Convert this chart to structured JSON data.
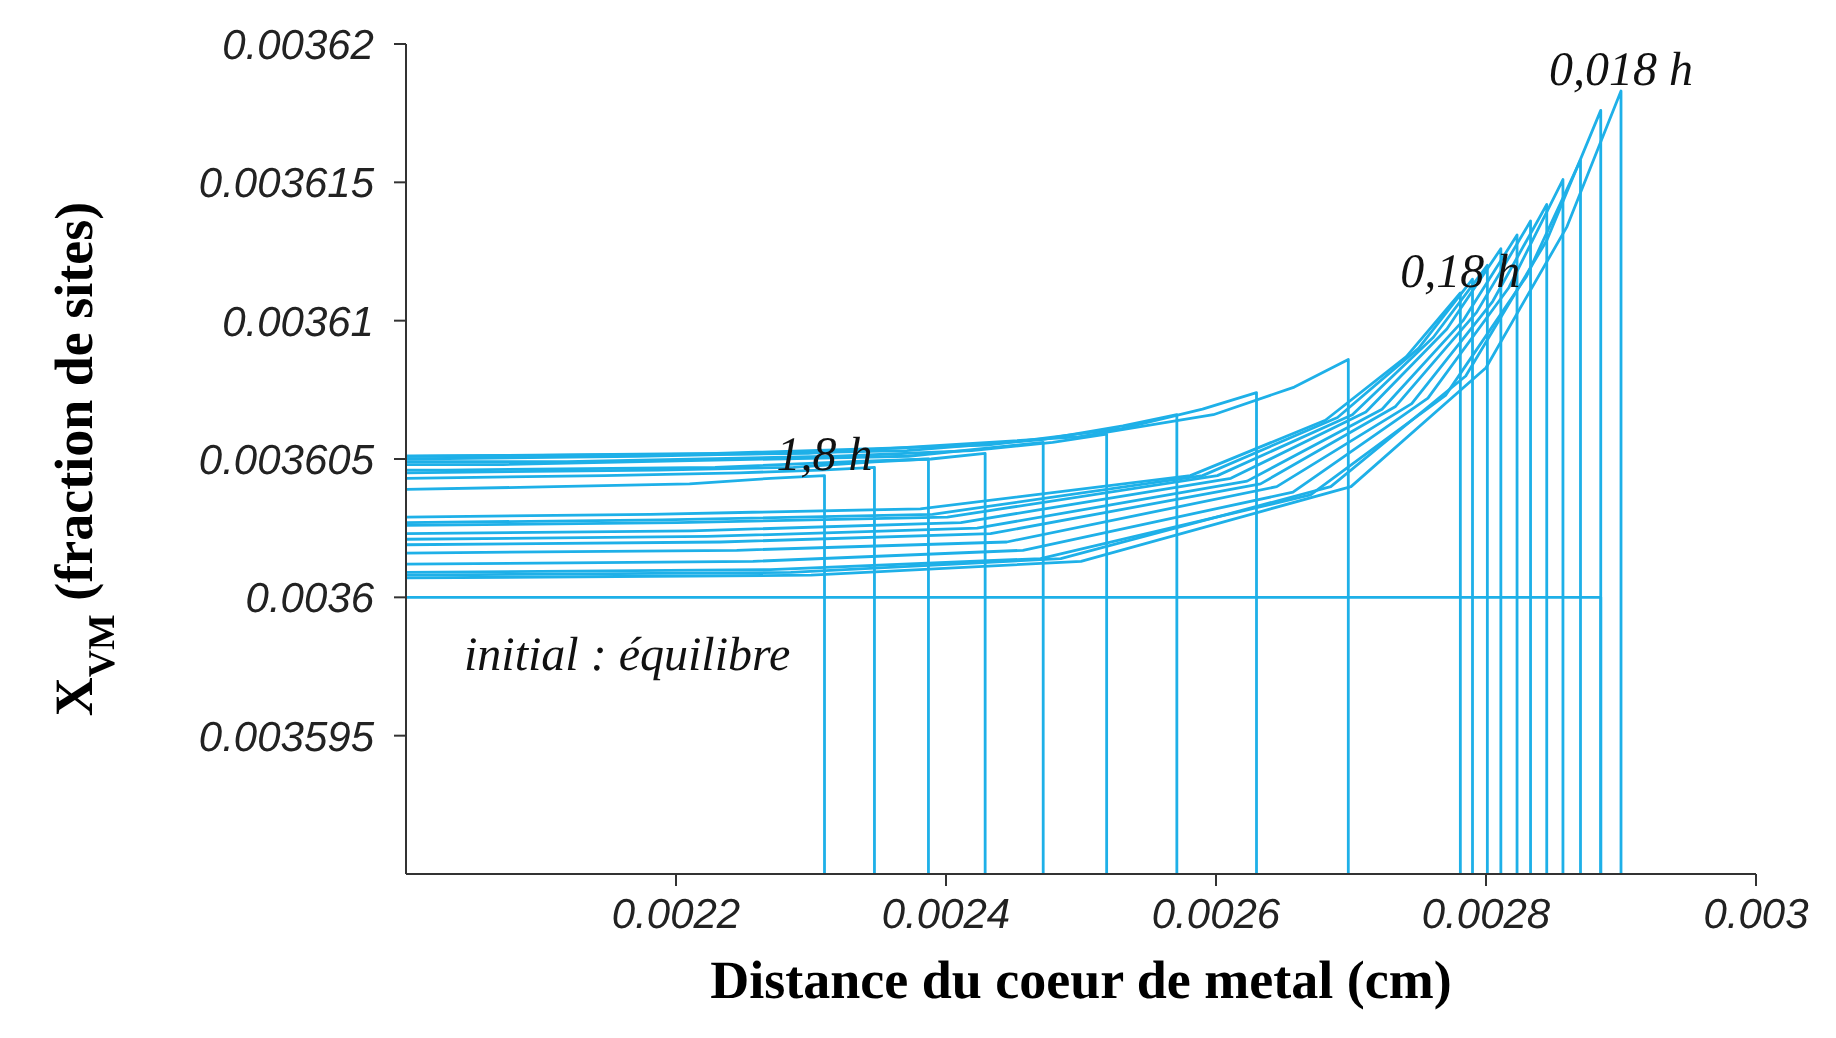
{
  "chart_data": {
    "type": "line",
    "xlabel": "Distance du coeur de metal (cm)",
    "ylabel": "X$_{VM}$ (fraction de sites)",
    "xlim": [
      0.002,
      0.003
    ],
    "xticks": [
      0.0022,
      0.0024,
      0.0026,
      0.0028,
      0.003
    ],
    "ylim": [
      0.00359,
      0.00362
    ],
    "yticks": [
      0.003595,
      0.0036,
      0.003605,
      0.00361,
      0.003615,
      0.00362
    ],
    "annotations": [
      {
        "text": "1,8 h",
        "x": 0.00231,
        "y": 0.0036044
      },
      {
        "text": "0,18 h",
        "x": 0.002781,
        "y": 0.003611
      },
      {
        "text": "0,018 h",
        "x": 0.0029,
        "y": 0.0036183
      },
      "initial : équilibre"
    ],
    "series": [
      {
        "color": "#1eb0e8",
        "x": [
          0.002,
          0.002885,
          0.002885
        ],
        "values": [
          0.0036,
          0.0036,
          0.00359
        ]
      },
      {
        "color": "#1eb0e8",
        "x": [
          0.002,
          0.00211,
          0.00221,
          0.00227,
          0.00231,
          0.00231
        ],
        "values": [
          0.0036039,
          0.003604,
          0.0036041,
          0.0036043,
          0.0036044,
          0.00359
        ]
      },
      {
        "color": "#1eb0e8",
        "x": [
          0.002,
          0.002147,
          0.002247,
          0.002307,
          0.002347,
          0.002347
        ],
        "values": [
          0.0036043,
          0.0036044,
          0.0036045,
          0.0036046,
          0.0036047,
          0.00359
        ]
      },
      {
        "color": "#1eb0e8",
        "x": [
          0.002,
          0.002187,
          0.002287,
          0.002347,
          0.002387,
          0.002387
        ],
        "values": [
          0.0036045,
          0.0036046,
          0.0036047,
          0.0036049,
          0.003605,
          0.00359
        ]
      },
      {
        "color": "#1eb0e8",
        "x": [
          0.002,
          0.002029,
          0.002229,
          0.002329,
          0.002389,
          0.002429,
          0.002429
        ],
        "values": [
          0.0036046,
          0.0036046,
          0.0036047,
          0.0036049,
          0.003605,
          0.0036052,
          0.00359
        ]
      },
      {
        "color": "#1eb0e8",
        "x": [
          0.002,
          0.002072,
          0.002272,
          0.002372,
          0.002432,
          0.002472,
          0.002472
        ],
        "values": [
          0.0036048,
          0.0036048,
          0.003605,
          0.0036051,
          0.0036054,
          0.0036056,
          0.00359
        ]
      },
      {
        "color": "#1eb0e8",
        "x": [
          0.002,
          0.002119,
          0.002319,
          0.002419,
          0.002479,
          0.002519,
          0.002519
        ],
        "values": [
          0.0036049,
          0.0036049,
          0.0036051,
          0.0036053,
          0.0036056,
          0.0036059,
          0.00359
        ]
      },
      {
        "color": "#1eb0e8",
        "x": [
          0.002,
          0.002171,
          0.002371,
          0.002471,
          0.002531,
          0.002571,
          0.002571
        ],
        "values": [
          0.003605,
          0.0036051,
          0.0036053,
          0.0036057,
          0.0036062,
          0.0036066,
          0.00359
        ]
      },
      {
        "color": "#1eb0e8",
        "x": [
          0.002,
          0.00223,
          0.00243,
          0.00253,
          0.00259,
          0.00263,
          0.00263
        ],
        "values": [
          0.0036051,
          0.0036052,
          0.0036055,
          0.0036061,
          0.0036068,
          0.0036074,
          0.00359
        ]
      },
      {
        "color": "#1eb0e8",
        "x": [
          0.002,
          0.002298,
          0.002498,
          0.002598,
          0.002658,
          0.002698,
          0.002698
        ],
        "values": [
          0.0036051,
          0.0036052,
          0.0036058,
          0.0036066,
          0.0036076,
          0.0036086,
          0.00359
        ]
      },
      {
        "color": "#1eb0e8",
        "x": [
          0.002,
          0.002181,
          0.002381,
          0.002581,
          0.002681,
          0.002741,
          0.002781,
          0.002781
        ],
        "values": [
          0.0036029,
          0.003603,
          0.0036032,
          0.0036044,
          0.0036064,
          0.0036087,
          0.003611,
          0.00359
        ]
      },
      {
        "color": "#1eb0e8",
        "x": [
          0.002,
          0.00219,
          0.00239,
          0.00259,
          0.00269,
          0.00275,
          0.00279,
          0.00279
        ],
        "values": [
          0.0036027,
          0.0036028,
          0.003603,
          0.0036044,
          0.0036065,
          0.003609,
          0.0036115,
          0.00359
        ]
      },
      {
        "color": "#1eb0e8",
        "x": [
          0.002,
          0.002201,
          0.002401,
          0.002601,
          0.002701,
          0.002761,
          0.002801,
          0.002801
        ],
        "values": [
          0.0036026,
          0.0036027,
          0.0036029,
          0.0036044,
          0.0036066,
          0.0036094,
          0.003612,
          0.00359
        ]
      },
      {
        "color": "#1eb0e8",
        "x": [
          0.002,
          0.002211,
          0.002411,
          0.002611,
          0.002711,
          0.002771,
          0.002811,
          0.002811
        ],
        "values": [
          0.0036023,
          0.0036024,
          0.0036027,
          0.0036043,
          0.0036067,
          0.0036097,
          0.0036126,
          0.00359
        ]
      },
      {
        "color": "#1eb0e8",
        "x": [
          0.002,
          0.002223,
          0.002423,
          0.002623,
          0.002723,
          0.002783,
          0.002823,
          0.002823
        ],
        "values": [
          0.0036021,
          0.0036022,
          0.0036025,
          0.0036042,
          0.0036068,
          0.00361,
          0.0036131,
          0.00359
        ]
      },
      {
        "color": "#1eb0e8",
        "x": [
          0.002,
          0.002233,
          0.002433,
          0.002633,
          0.002733,
          0.002793,
          0.002833,
          0.002833
        ],
        "values": [
          0.0036019,
          0.003602,
          0.0036023,
          0.0036041,
          0.0036069,
          0.0036103,
          0.0036136,
          0.00359
        ]
      },
      {
        "color": "#1eb0e8",
        "x": [
          0.002,
          0.002245,
          0.002445,
          0.002645,
          0.002745,
          0.002805,
          0.002845,
          0.002845
        ],
        "values": [
          0.0036016,
          0.0036017,
          0.003602,
          0.003604,
          0.003607,
          0.0036107,
          0.0036142,
          0.00359
        ]
      },
      {
        "color": "#1eb0e8",
        "x": [
          0.002,
          0.002257,
          0.002457,
          0.002657,
          0.002757,
          0.002817,
          0.002857,
          0.002857
        ],
        "values": [
          0.0036012,
          0.0036013,
          0.0036017,
          0.0036038,
          0.0036072,
          0.0036112,
          0.0036151,
          0.00359
        ]
      },
      {
        "color": "#1eb0e8",
        "x": [
          0.002,
          0.00227,
          0.00247,
          0.00267,
          0.00277,
          0.00283,
          0.00287,
          0.00287
        ],
        "values": [
          0.0036009,
          0.003601,
          0.0036014,
          0.0036037,
          0.0036073,
          0.0036116,
          0.0036158,
          0.00359
        ]
      },
      {
        "color": "#1eb0e8",
        "x": [
          0.002,
          0.002285,
          0.002485,
          0.002685,
          0.002785,
          0.002845,
          0.002885,
          0.002885
        ],
        "values": [
          0.0036008,
          0.0036009,
          0.0036014,
          0.003604,
          0.003608,
          0.0036129,
          0.0036176,
          0.00359
        ]
      },
      {
        "color": "#1eb0e8",
        "x": [
          0.002,
          0.0023,
          0.0025,
          0.0027,
          0.0028,
          0.00286,
          0.0029,
          0.0029
        ],
        "values": [
          0.0036007,
          0.0036008,
          0.0036013,
          0.003604,
          0.0036083,
          0.0036134,
          0.0036183,
          0.00359
        ]
      }
    ]
  }
}
